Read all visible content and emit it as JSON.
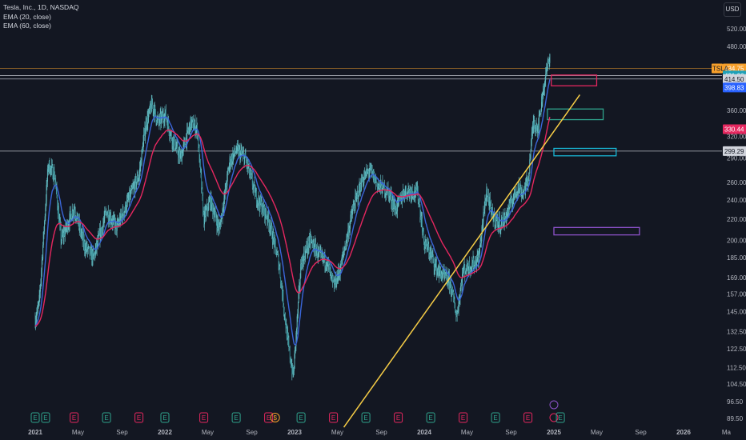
{
  "legend": {
    "symbol": "Tesla, Inc., 1D, NASDAQ",
    "ema20": "EMA (20, close)",
    "ema60": "EMA (60, close)"
  },
  "currency": "USD",
  "colors": {
    "background": "#131722",
    "candle": "#5fb7be",
    "ema20": "#3a66d9",
    "ema60": "#e5275f",
    "trendline": "#f7cd46",
    "hline": "#c9ccd4",
    "box_pink": "#e5275f",
    "box_teal": "#2fa38c",
    "box_cyan": "#19b5d4",
    "box_purple": "#8c52c9",
    "last_price": "#f7a02b",
    "tag_cyan": "#1fa0b8",
    "tag_gray": "#d1d4dc",
    "tag_blue": "#2962ff",
    "tag_red": "#e5275f"
  },
  "chart_data": {
    "type": "candlestick",
    "title": "Tesla, Inc., 1D, NASDAQ",
    "scale": "log",
    "x_ticks": [
      "2021",
      "May",
      "Sep",
      "2022",
      "May",
      "Sep",
      "2023",
      "May",
      "Sep",
      "2024",
      "May",
      "Sep",
      "2025",
      "May",
      "Sep",
      "2026",
      "Ma"
    ],
    "y_ticks": [
      520.0,
      480.0,
      360.0,
      320.0,
      290.0,
      260.0,
      240.0,
      220.0,
      200.0,
      185.0,
      169.0,
      157.0,
      145.0,
      132.5,
      122.5,
      112.5,
      104.5,
      96.5,
      89.5
    ],
    "y_range": [
      86,
      560
    ],
    "price_path": [
      [
        2021.0,
        140
      ],
      [
        2021.03,
        150
      ],
      [
        2021.1,
        282
      ],
      [
        2021.15,
        268
      ],
      [
        2021.2,
        200
      ],
      [
        2021.3,
        232
      ],
      [
        2021.38,
        195
      ],
      [
        2021.45,
        185
      ],
      [
        2021.55,
        228
      ],
      [
        2021.63,
        212
      ],
      [
        2021.72,
        240
      ],
      [
        2021.8,
        268
      ],
      [
        2021.85,
        335
      ],
      [
        2021.9,
        370
      ],
      [
        2021.95,
        340
      ],
      [
        2022.0,
        355
      ],
      [
        2022.05,
        320
      ],
      [
        2022.12,
        290
      ],
      [
        2022.2,
        340
      ],
      [
        2022.25,
        330
      ],
      [
        2022.3,
        220
      ],
      [
        2022.35,
        240
      ],
      [
        2022.42,
        210
      ],
      [
        2022.5,
        285
      ],
      [
        2022.55,
        300
      ],
      [
        2022.62,
        290
      ],
      [
        2022.7,
        245
      ],
      [
        2022.8,
        220
      ],
      [
        2022.88,
        180
      ],
      [
        2022.95,
        125
      ],
      [
        2022.99,
        108
      ],
      [
        2023.05,
        180
      ],
      [
        2023.12,
        200
      ],
      [
        2023.2,
        185
      ],
      [
        2023.25,
        182
      ],
      [
        2023.3,
        162
      ],
      [
        2023.35,
        175
      ],
      [
        2023.45,
        230
      ],
      [
        2023.52,
        262
      ],
      [
        2023.58,
        275
      ],
      [
        2023.65,
        255
      ],
      [
        2023.72,
        250
      ],
      [
        2023.78,
        230
      ],
      [
        2023.85,
        250
      ],
      [
        2023.9,
        250
      ],
      [
        2023.95,
        248
      ],
      [
        2024.0,
        198
      ],
      [
        2024.05,
        188
      ],
      [
        2024.1,
        175
      ],
      [
        2024.2,
        165
      ],
      [
        2024.25,
        142
      ],
      [
        2024.3,
        175
      ],
      [
        2024.38,
        180
      ],
      [
        2024.42,
        185
      ],
      [
        2024.48,
        250
      ],
      [
        2024.52,
        225
      ],
      [
        2024.58,
        215
      ],
      [
        2024.62,
        220
      ],
      [
        2024.68,
        240
      ],
      [
        2024.72,
        255
      ],
      [
        2024.76,
        248
      ],
      [
        2024.8,
        262
      ],
      [
        2024.84,
        340
      ],
      [
        2024.88,
        335
      ],
      [
        2024.92,
        400
      ],
      [
        2024.96,
        450
      ],
      [
        2024.97,
        470
      ]
    ],
    "series": [
      {
        "name": "EMA (20, close)"
      },
      {
        "name": "EMA (60, close)"
      }
    ],
    "horizontal_lines": [
      434.75,
      421.06,
      414.5,
      299.29
    ],
    "trendline": [
      [
        2023.38,
        86
      ],
      [
        2025.2,
        386
      ]
    ],
    "boxes": [
      {
        "x0": 2024.98,
        "x1": 2025.33,
        "y0": 402,
        "y1": 422,
        "color": "pink"
      },
      {
        "x0": 2024.95,
        "x1": 2025.38,
        "y0": 345,
        "y1": 362,
        "color": "teal"
      },
      {
        "x0": 2025.0,
        "x1": 2025.48,
        "y0": 293,
        "y1": 303,
        "color": "cyan"
      },
      {
        "x0": 2025.0,
        "x1": 2025.66,
        "y0": 205,
        "y1": 212,
        "color": "purple"
      }
    ],
    "price_tags": [
      {
        "label": "434.75",
        "value": 434.75,
        "color": "last_price",
        "prefix": "TSLA"
      },
      {
        "label": "421.06",
        "value": 421.06,
        "color": "tag_cyan"
      },
      {
        "label": "414.50",
        "value": 414.5,
        "color": "tag_gray"
      },
      {
        "label": "398.83",
        "value": 398.83,
        "color": "tag_blue"
      },
      {
        "label": "330.44",
        "value": 330.44,
        "color": "tag_red"
      },
      {
        "label": "299.29",
        "value": 299.29,
        "color": "tag_gray"
      }
    ],
    "events": [
      {
        "t": 2021.0,
        "kind": "E"
      },
      {
        "t": 2021.08,
        "kind": "E"
      },
      {
        "t": 2021.3,
        "kind": "E"
      },
      {
        "t": 2021.55,
        "kind": "E"
      },
      {
        "t": 2021.8,
        "kind": "E"
      },
      {
        "t": 2022.0,
        "kind": "E"
      },
      {
        "t": 2022.3,
        "kind": "E"
      },
      {
        "t": 2022.55,
        "kind": "E"
      },
      {
        "t": 2022.8,
        "kind": "E"
      },
      {
        "t": 2022.85,
        "kind": "$"
      },
      {
        "t": 2023.05,
        "kind": "E"
      },
      {
        "t": 2023.3,
        "kind": "E"
      },
      {
        "t": 2023.55,
        "kind": "E"
      },
      {
        "t": 2023.8,
        "kind": "E"
      },
      {
        "t": 2024.05,
        "kind": "E"
      },
      {
        "t": 2024.3,
        "kind": "E"
      },
      {
        "t": 2024.55,
        "kind": "E"
      },
      {
        "t": 2024.8,
        "kind": "E"
      },
      {
        "t": 2025.0,
        "kind": "split"
      },
      {
        "t": 2025.05,
        "kind": "E"
      }
    ],
    "event_labels": {
      "E": "E",
      "$": "$"
    }
  }
}
